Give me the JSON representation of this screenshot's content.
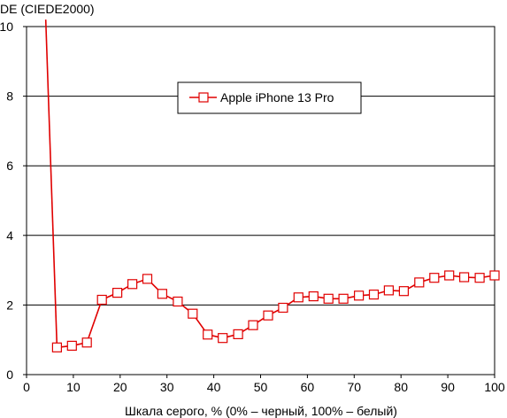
{
  "chart_data": {
    "type": "line",
    "ylabel": "DE (CIEDE2000)",
    "xlabel": "Шкала серого, % (0% – черный, 100% – белый)",
    "xlim": [
      0,
      100
    ],
    "ylim": [
      0,
      10
    ],
    "xticks": [
      "0",
      "10",
      "20",
      "30",
      "40",
      "50",
      "60",
      "70",
      "80",
      "90",
      "100"
    ],
    "yticks": [
      "0",
      "2",
      "4",
      "6",
      "8",
      "10"
    ],
    "grid": "horizontal",
    "legend": "top-center",
    "series": [
      {
        "name": "Apple iPhone 13 Pro",
        "color": "#e00000",
        "marker": "square",
        "line_lead": {
          "x": [
            4.1,
            6.5
          ],
          "y": [
            10.2,
            0.78
          ]
        },
        "x": [
          6.5,
          9.7,
          12.9,
          16.1,
          19.4,
          22.6,
          25.8,
          29.0,
          32.3,
          35.5,
          38.7,
          41.9,
          45.2,
          48.4,
          51.6,
          54.8,
          58.1,
          61.3,
          64.5,
          67.7,
          71.0,
          74.2,
          77.4,
          80.6,
          83.9,
          87.1,
          90.3,
          93.5,
          96.8,
          100.0
        ],
        "y": [
          0.78,
          0.83,
          0.92,
          2.15,
          2.35,
          2.6,
          2.75,
          2.32,
          2.1,
          1.75,
          1.15,
          1.05,
          1.16,
          1.42,
          1.7,
          1.92,
          2.22,
          2.25,
          2.18,
          2.18,
          2.27,
          2.3,
          2.42,
          2.4,
          2.65,
          2.78,
          2.85,
          2.8,
          2.78,
          2.85
        ]
      }
    ]
  }
}
